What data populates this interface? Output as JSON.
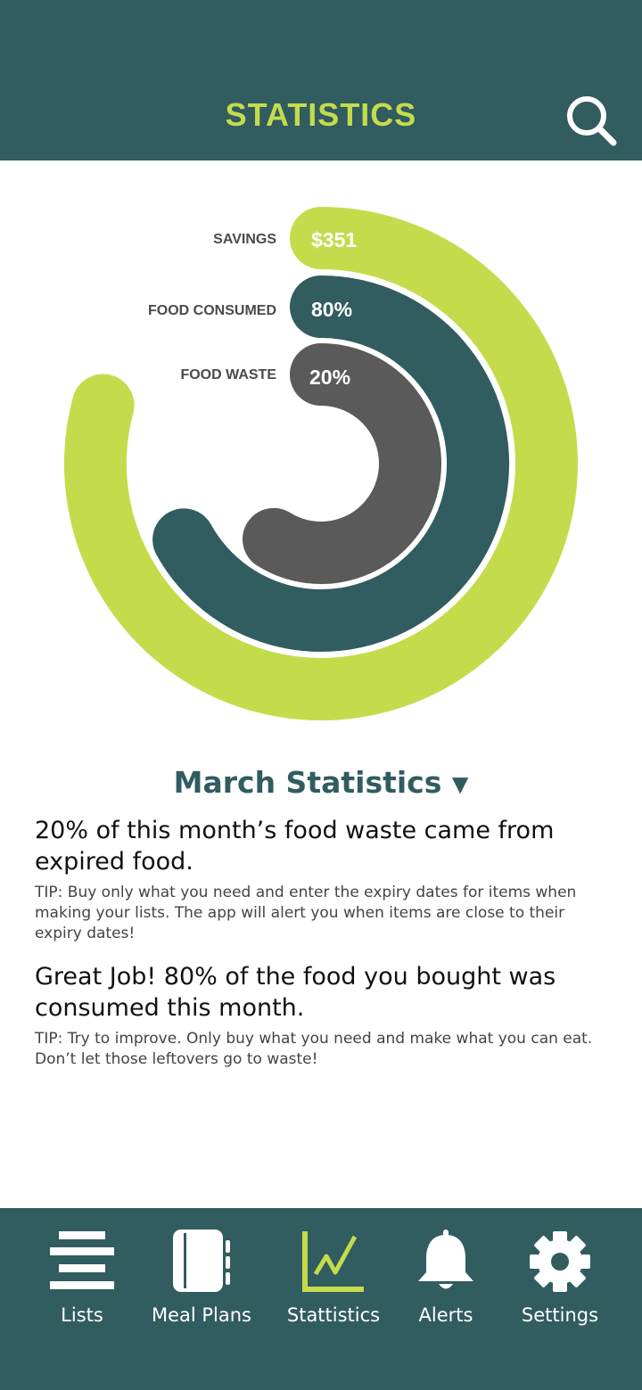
{
  "header": {
    "title": "STATISTICS",
    "search_icon": "search-icon"
  },
  "chart_data": {
    "type": "radial-bar",
    "series": [
      {
        "name": "SAVINGS",
        "label": "$351",
        "color": "#c4dc4c"
      },
      {
        "name": "FOOD CONSUMED",
        "label": "80%",
        "value": 80,
        "color": "#315c60"
      },
      {
        "name": "FOOD WASTE",
        "label": "20%",
        "value": 20,
        "color": "#5a5a5a"
      }
    ]
  },
  "month_selector": {
    "label": "March Statistics",
    "arrow": "▼"
  },
  "stats": [
    {
      "headline": "20% of this month’s food waste came from expired food.",
      "tip": "TIP: Buy only what you need and enter the expiry dates for items when making your lists. The app will alert you when items are close to their expiry dates!"
    },
    {
      "headline": "Great Job! 80% of the food you bought was consumed this month.",
      "tip": "TIP: Try to improve. Only buy what you need and make what you can eat. Don’t let those leftovers go to waste!"
    }
  ],
  "tabs": [
    {
      "label": "Lists",
      "icon": "list-icon",
      "active": false
    },
    {
      "label": "Meal Plans",
      "icon": "notebook-icon",
      "active": false
    },
    {
      "label": "Stattistics",
      "icon": "chart-icon",
      "active": true
    },
    {
      "label": "Alerts",
      "icon": "bell-icon",
      "active": false
    },
    {
      "label": "Settings",
      "icon": "gear-icon",
      "active": false
    }
  ],
  "colors": {
    "primary": "#315c60",
    "accent": "#c4dc4c",
    "waste": "#5a5a5a"
  }
}
